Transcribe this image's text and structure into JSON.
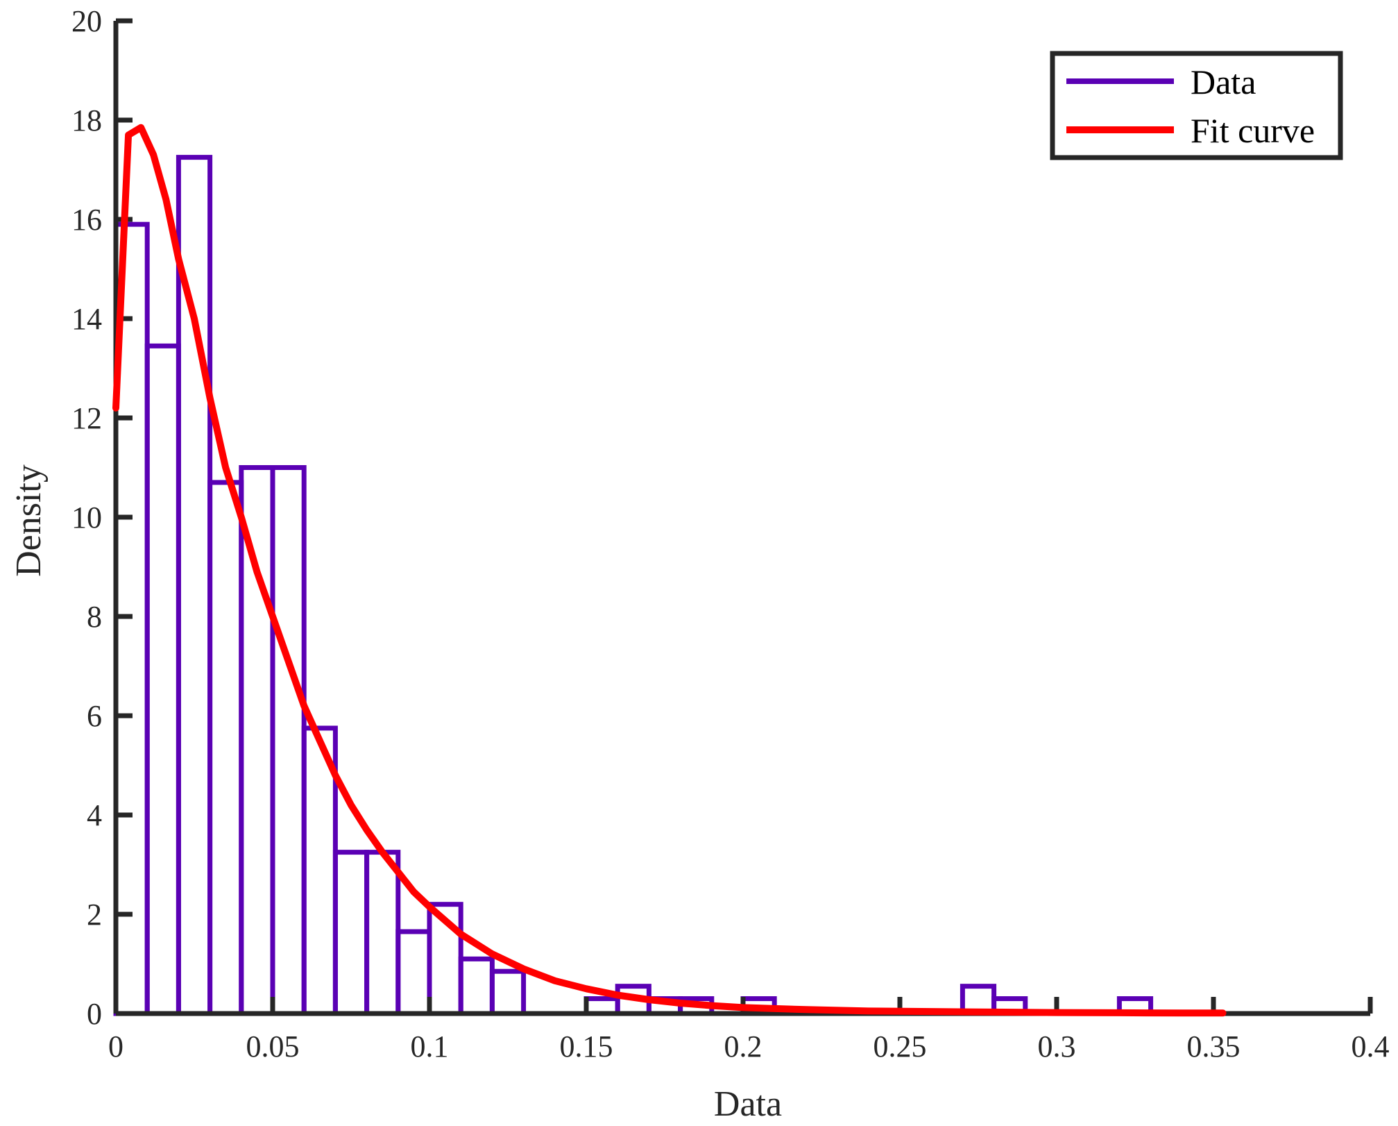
{
  "chart_data": {
    "type": "bar",
    "xlabel": "Data",
    "ylabel": "Density",
    "xlim": [
      0,
      0.4
    ],
    "ylim": [
      0,
      20
    ],
    "xticks": [
      0,
      0.05,
      0.1,
      0.15,
      0.2,
      0.25,
      0.3,
      0.35,
      0.4
    ],
    "xtick_labels": [
      "0",
      "0.05",
      "0.1",
      "0.15",
      "0.2",
      "0.25",
      "0.3",
      "0.35",
      "0.4"
    ],
    "yticks": [
      0,
      2,
      4,
      6,
      8,
      10,
      12,
      14,
      16,
      18,
      20
    ],
    "ytick_labels": [
      "0",
      "2",
      "4",
      "6",
      "8",
      "10",
      "12",
      "14",
      "16",
      "18",
      "20"
    ],
    "grid": false,
    "legend": {
      "placement": "top-right",
      "entries": [
        "Data",
        "Fit curve"
      ]
    },
    "histogram": {
      "name": "Data",
      "color": "#5a00b4",
      "bin_width": 0.01,
      "bin_edges_start": 0,
      "values": [
        15.9,
        13.45,
        17.25,
        10.7,
        11.0,
        11.0,
        5.75,
        3.25,
        3.25,
        1.65,
        2.2,
        1.1,
        0.85,
        0,
        0,
        0.3,
        0.55,
        0.3,
        0.3,
        0,
        0.3,
        0,
        0,
        0,
        0,
        0,
        0,
        0.55,
        0.3,
        0,
        0,
        0,
        0.3,
        0
      ]
    },
    "fit_curve": {
      "name": "Fit curve",
      "color": "#ff0000",
      "x": [
        0,
        0.004,
        0.008,
        0.012,
        0.016,
        0.02,
        0.025,
        0.03,
        0.035,
        0.04,
        0.045,
        0.05,
        0.055,
        0.06,
        0.065,
        0.07,
        0.075,
        0.08,
        0.085,
        0.09,
        0.095,
        0.1,
        0.11,
        0.12,
        0.13,
        0.14,
        0.15,
        0.16,
        0.17,
        0.18,
        0.19,
        0.2,
        0.22,
        0.24,
        0.26,
        0.28,
        0.3,
        0.32,
        0.34,
        0.353
      ],
      "y": [
        12.2,
        17.7,
        17.85,
        17.3,
        16.4,
        15.2,
        14.0,
        12.4,
        11.0,
        10.0,
        8.9,
        8.0,
        7.1,
        6.2,
        5.5,
        4.8,
        4.2,
        3.7,
        3.25,
        2.85,
        2.45,
        2.15,
        1.6,
        1.2,
        0.9,
        0.66,
        0.5,
        0.37,
        0.28,
        0.21,
        0.16,
        0.12,
        0.08,
        0.05,
        0.04,
        0.03,
        0.02,
        0.015,
        0.01,
        0.01
      ]
    }
  }
}
